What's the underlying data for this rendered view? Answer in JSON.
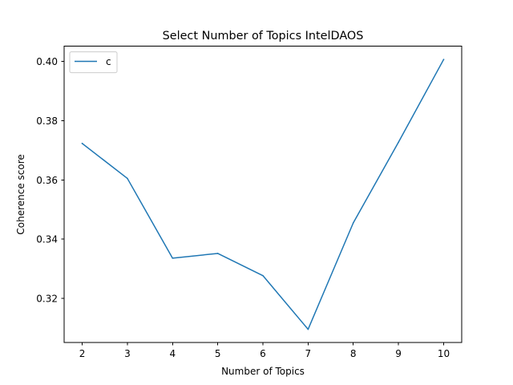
{
  "chart_data": {
    "type": "line",
    "title": "Select Number of Topics IntelDAOS",
    "xlabel": "Number of Topics",
    "ylabel": "Coherence score",
    "x": [
      2,
      3,
      4,
      5,
      6,
      7,
      8,
      9,
      10
    ],
    "series": [
      {
        "name": "c",
        "color": "#1f77b4",
        "values": [
          0.3723,
          0.3605,
          0.3336,
          0.3352,
          0.3277,
          0.3096,
          0.3455,
          0.3727,
          0.4006
        ]
      }
    ],
    "xticks": [
      "2",
      "3",
      "4",
      "5",
      "6",
      "7",
      "8",
      "9",
      "10"
    ],
    "yticks": [
      "0.32",
      "0.34",
      "0.36",
      "0.38",
      "0.40"
    ],
    "xlim": [
      1.6,
      10.4
    ],
    "ylim": [
      0.3051,
      0.4051
    ],
    "grid": false,
    "legend_position": "top-left"
  }
}
